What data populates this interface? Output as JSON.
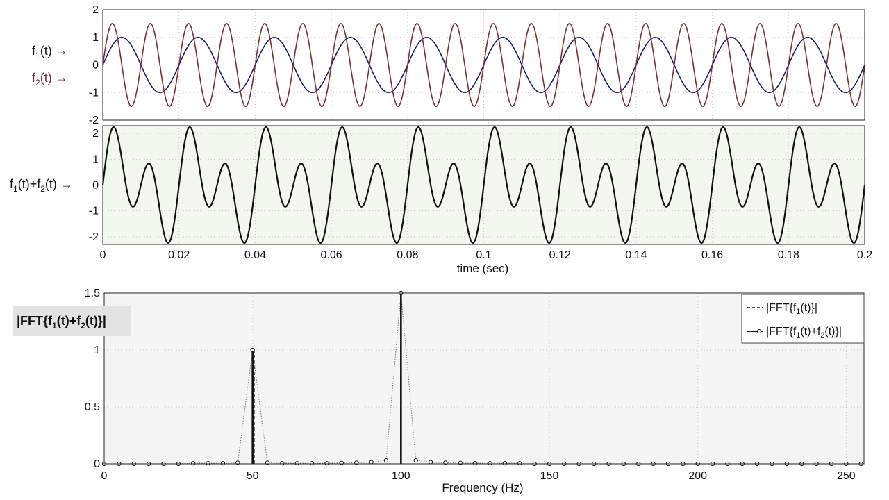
{
  "colors": {
    "f1": "#1a1a6e",
    "f2": "#7a2f2f",
    "sum": "#111111",
    "top_bg": "#ffffff",
    "mid_bg": "#f1f7ee",
    "bottom_bg": "#f4f4f4",
    "label_bg": "#e3e3e3"
  },
  "chart_data": [
    {
      "type": "line",
      "panel": "top",
      "labels": {
        "f1": "f1(t) →",
        "f2": "f2(t) →"
      },
      "series": [
        {
          "name": "f1(t)",
          "function": "sine",
          "amplitude": 1.0,
          "frequency_hz": 50
        },
        {
          "name": "f2(t)",
          "function": "sine",
          "amplitude": 1.5,
          "frequency_hz": 100
        }
      ],
      "xlim": [
        0,
        0.2
      ],
      "ylim": [
        -2,
        2
      ],
      "yticks": [
        -2,
        -1,
        0,
        1,
        2
      ],
      "grid": true
    },
    {
      "type": "line",
      "panel": "middle",
      "ylabel": "f1(t)+f2(t) →",
      "xlabel": "time (sec)",
      "series": [
        {
          "name": "f1(t)+f2(t)",
          "function": "sum",
          "components": [
            {
              "amplitude": 1.0,
              "frequency_hz": 50
            },
            {
              "amplitude": 1.5,
              "frequency_hz": 100
            }
          ]
        }
      ],
      "xlim": [
        0,
        0.2
      ],
      "xticks": [
        "0",
        "0.02",
        "0.04",
        "0.06",
        "0.08",
        "0.1",
        "0.12",
        "0.14",
        "0.16",
        "0.18",
        "0.2"
      ],
      "ylim": [
        -2.3,
        2.3
      ],
      "yticks": [
        -2,
        -1,
        0,
        1,
        2
      ],
      "grid": true
    },
    {
      "type": "line",
      "panel": "bottom",
      "ylabel": "|FFT{f1(t)+f2(t)}|",
      "xlabel": "Frequency (Hz)",
      "legend": {
        "position": "top-right",
        "entries": [
          "|FFT{f1(t)}|",
          "|FFT{f1(t)+f2(t)}|"
        ]
      },
      "series": [
        {
          "name": "|FFT{f1(t)}|",
          "style": "dashed",
          "x": [
            50
          ],
          "y": [
            1.0
          ]
        },
        {
          "name": "|FFT{f1(t)+f2(t)}|",
          "style": "dotted-markers",
          "x": [
            0,
            5,
            10,
            15,
            20,
            25,
            30,
            35,
            40,
            45,
            50,
            55,
            60,
            65,
            70,
            75,
            80,
            85,
            90,
            95,
            100,
            105,
            110,
            115,
            120,
            125,
            130,
            135,
            140,
            145,
            150,
            155,
            160,
            165,
            170,
            175,
            180,
            185,
            190,
            195,
            200,
            205,
            210,
            215,
            220,
            225,
            230,
            235,
            240,
            245,
            250,
            255
          ],
          "y": [
            0,
            0,
            0,
            0,
            0,
            0,
            0.005,
            0.005,
            0.005,
            0.01,
            1.0,
            0.01,
            0.005,
            0.005,
            0.005,
            0.005,
            0.008,
            0.01,
            0.015,
            0.03,
            1.5,
            0.03,
            0.015,
            0.01,
            0.008,
            0.005,
            0.005,
            0.005,
            0.005,
            0,
            0,
            0,
            0,
            0,
            0,
            0,
            0,
            0,
            0,
            0,
            0,
            0,
            0,
            0,
            0,
            0,
            0,
            0,
            0,
            0,
            0,
            0
          ]
        }
      ],
      "xlim": [
        0,
        256
      ],
      "xticks": [
        0,
        50,
        100,
        150,
        200,
        250
      ],
      "ylim": [
        0,
        1.5
      ],
      "yticks": [
        "0",
        "0.5",
        "1",
        "1.5"
      ],
      "grid": true
    }
  ]
}
